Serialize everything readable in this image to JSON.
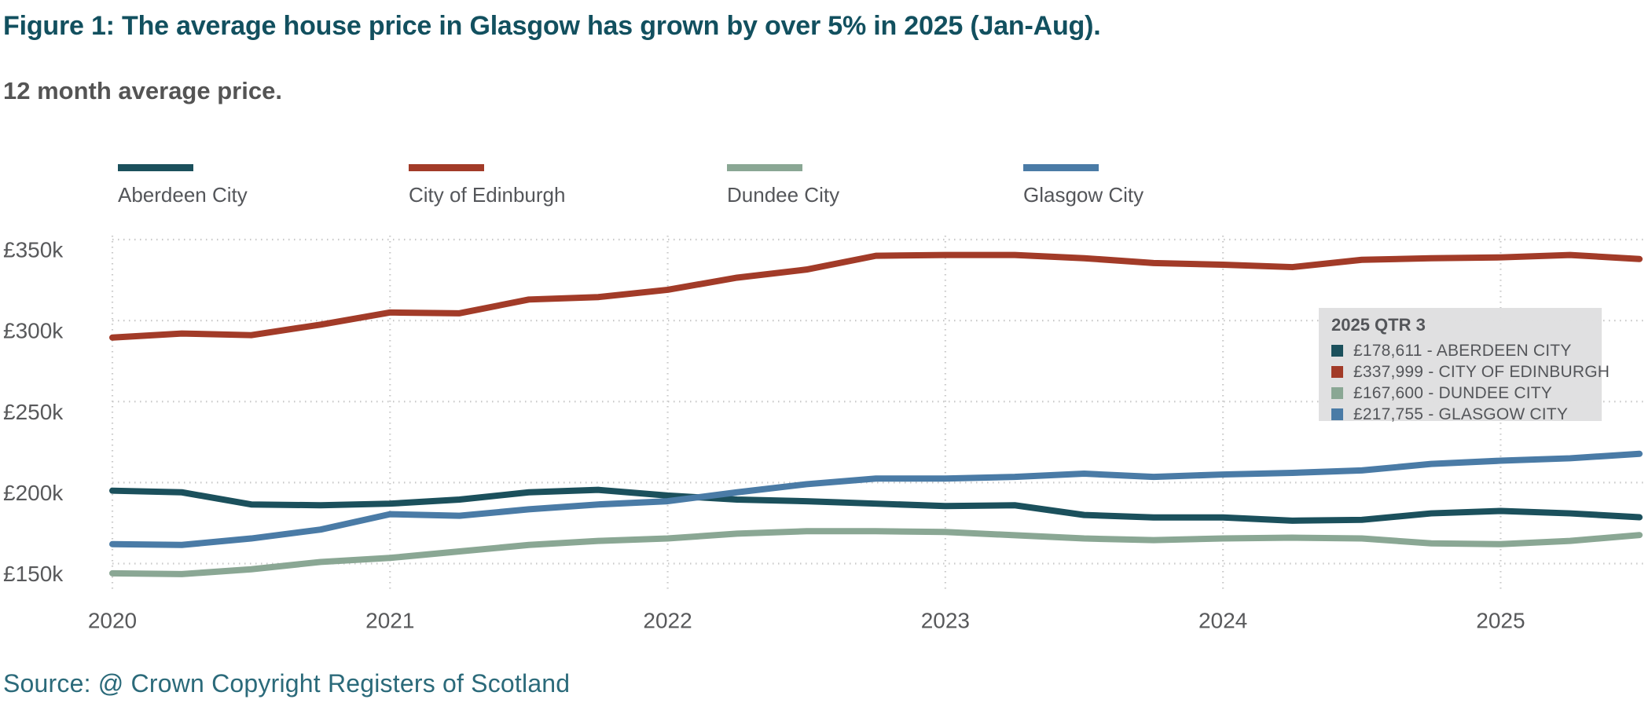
{
  "header": {
    "title": "Figure 1: The average house price in Glasgow has grown by over 5% in 2025 (Jan-Aug).",
    "subtitle": "12 month average price."
  },
  "legend": {
    "items": [
      {
        "label": "Aberdeen City",
        "color": "#1b505c"
      },
      {
        "label": "City of Edinburgh",
        "color": "#a23b28"
      },
      {
        "label": "Dundee City",
        "color": "#8aa794"
      },
      {
        "label": "Glasgow City",
        "color": "#4a7ba6"
      }
    ]
  },
  "tooltip": {
    "title": "2025 QTR 3",
    "rows": [
      {
        "color": "#1b505c",
        "text": "£178,611 - ABERDEEN CITY"
      },
      {
        "color": "#a23b28",
        "text": "£337,999 - CITY OF EDINBURGH"
      },
      {
        "color": "#8aa794",
        "text": "£167,600 - DUNDEE CITY"
      },
      {
        "color": "#4a7ba6",
        "text": "£217,755 - GLASGOW CITY"
      }
    ]
  },
  "source": {
    "text": "Source: @ Crown Copyright Registers of Scotland"
  },
  "chart_data": {
    "type": "line",
    "title": "Figure 1: The average house price in Glasgow has grown by over 5% in 2025 (Jan-Aug).",
    "subtitle": "12 month average price.",
    "unit": "GBP thousands (12 month average house price)",
    "grid": "dotted",
    "legend_position": "top",
    "ylim": [
      131,
      352
    ],
    "y_ticks": [
      350,
      300,
      250,
      200,
      150
    ],
    "y_tick_labels": [
      "£350k",
      "£300k",
      "£250k",
      "£200k",
      "£150k"
    ],
    "x_tick_indices": [
      0,
      4,
      8,
      12,
      16,
      20
    ],
    "x_tick_labels": [
      "2020",
      "2021",
      "2022",
      "2023",
      "2024",
      "2025"
    ],
    "x": [
      "2020 Q1",
      "2020 Q2",
      "2020 Q3",
      "2020 Q4",
      "2021 Q1",
      "2021 Q2",
      "2021 Q3",
      "2021 Q4",
      "2022 Q1",
      "2022 Q2",
      "2022 Q3",
      "2022 Q4",
      "2023 Q1",
      "2023 Q2",
      "2023 Q3",
      "2023 Q4",
      "2024 Q1",
      "2024 Q2",
      "2024 Q3",
      "2024 Q4",
      "2025 Q1",
      "2025 Q2",
      "2025 Q3"
    ],
    "series": [
      {
        "name": "Aberdeen City",
        "color": "#1b505c",
        "values": [
          195,
          194,
          186.5,
          186,
          187,
          189.5,
          194,
          195.5,
          192,
          189.5,
          188.5,
          187,
          185.5,
          186,
          180,
          178.5,
          178.5,
          176.5,
          177,
          181,
          182.5,
          181,
          178.611
        ]
      },
      {
        "name": "City of Edinburgh",
        "color": "#a23b28",
        "values": [
          289.5,
          292,
          291,
          297.5,
          305,
          304.5,
          313,
          314.5,
          319,
          326.5,
          331.5,
          340,
          340.5,
          340.5,
          338.5,
          335.5,
          334.5,
          333,
          337.5,
          338.5,
          339,
          340.5,
          337.999
        ]
      },
      {
        "name": "Dundee City",
        "color": "#8aa794",
        "values": [
          144,
          143.5,
          146.5,
          151,
          153.5,
          157.5,
          161.5,
          164,
          165.5,
          168.5,
          170,
          170,
          169.5,
          167.5,
          165.5,
          164.5,
          165.5,
          166,
          165.5,
          162.5,
          162,
          164,
          167.6
        ]
      },
      {
        "name": "Glasgow City",
        "color": "#4a7ba6",
        "values": [
          162,
          161.5,
          165.5,
          171,
          180.5,
          179.5,
          183.5,
          186.5,
          188.5,
          194,
          199,
          202.5,
          202.5,
          203.5,
          205.5,
          203.5,
          205,
          206,
          207.5,
          211.5,
          213.5,
          215,
          217.755
        ]
      }
    ],
    "end_values": {
      "ABERDEEN CITY": 178611,
      "CITY OF EDINBURGH": 337999,
      "DUNDEE CITY": 167600,
      "GLASGOW CITY": 217755
    }
  },
  "colors": {
    "grid": "#c9c9c9",
    "axis_label": "#58595b",
    "tooltip_bg": "#dfdfe0",
    "title": "#12505f",
    "source": "#2b6a7a"
  }
}
